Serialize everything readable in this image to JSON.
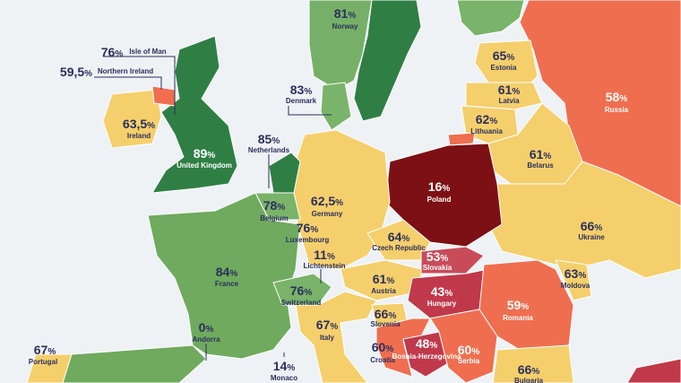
{
  "unit": "%",
  "regions": [
    {
      "name": "Norway",
      "value": "81"
    },
    {
      "name": "Isle of Man",
      "value": "76"
    },
    {
      "name": "Northern Ireland",
      "value": "59,5"
    },
    {
      "name": "Estonia",
      "value": "65"
    },
    {
      "name": "Russia",
      "value": "58"
    },
    {
      "name": "Denmark",
      "value": "83"
    },
    {
      "name": "Latvia",
      "value": "61"
    },
    {
      "name": "Ireland",
      "value": "63,5"
    },
    {
      "name": "Lithuania",
      "value": "62"
    },
    {
      "name": "Netherlands",
      "value": "85"
    },
    {
      "name": "United Kingdom",
      "value": "89"
    },
    {
      "name": "Belarus",
      "value": "61"
    },
    {
      "name": "Poland",
      "value": "16"
    },
    {
      "name": "Germany",
      "value": "62,5"
    },
    {
      "name": "Belgium",
      "value": "78"
    },
    {
      "name": "Ukraine",
      "value": "66"
    },
    {
      "name": "Luxembourg",
      "value": "76"
    },
    {
      "name": "Czech Republic",
      "value": "64"
    },
    {
      "name": "Slovakia",
      "value": "53"
    },
    {
      "name": "Lichtenstein",
      "value": "11"
    },
    {
      "name": "France",
      "value": "84"
    },
    {
      "name": "Moldova",
      "value": "63"
    },
    {
      "name": "Austria",
      "value": "61"
    },
    {
      "name": "Hungary",
      "value": "43"
    },
    {
      "name": "Switzerland",
      "value": "76"
    },
    {
      "name": "Romania",
      "value": "59"
    },
    {
      "name": "Slovenia",
      "value": "66"
    },
    {
      "name": "Andorra",
      "value": "0"
    },
    {
      "name": "Italy",
      "value": "67"
    },
    {
      "name": "Portugal",
      "value": "67"
    },
    {
      "name": "Croatia",
      "value": "60"
    },
    {
      "name": "Bosnia-Herzegovina",
      "value": "48"
    },
    {
      "name": "Serbia",
      "value": "60"
    },
    {
      "name": "Monaco",
      "value": "14"
    },
    {
      "name": "Bulgaria",
      "value": "66"
    }
  ]
}
